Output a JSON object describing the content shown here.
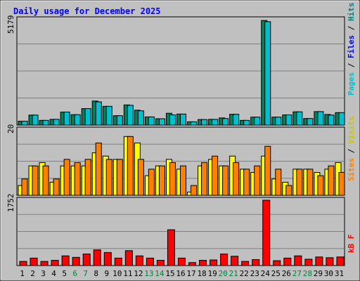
{
  "chart_data": {
    "type": "bar",
    "title": "Daily usage for December 2025",
    "categories": [
      "1",
      "2",
      "3",
      "4",
      "5",
      "6",
      "7",
      "8",
      "9",
      "10",
      "11",
      "12",
      "13",
      "14",
      "15",
      "16",
      "17",
      "18",
      "19",
      "20",
      "21",
      "22",
      "23",
      "24",
      "25",
      "26",
      "27",
      "28",
      "29",
      "30",
      "31"
    ],
    "weekend_days": [
      "6",
      "7",
      "13",
      "14",
      "20",
      "21",
      "27",
      "28"
    ],
    "panels": [
      {
        "id": "pages-files-hits",
        "max_label": "5179",
        "ymax": 5179,
        "series": [
          {
            "name": "Pages",
            "color": "#00805c",
            "values": [
              190,
              490,
              230,
              280,
              640,
              510,
              810,
              1180,
              920,
              460,
              990,
              730,
              400,
              310,
              580,
              540,
              160,
              270,
              280,
              350,
              530,
              230,
              390,
              5140,
              390,
              500,
              650,
              320,
              660,
              520,
              610
            ]
          },
          {
            "name": "Files",
            "color": "#00c0d0",
            "values": [
              190,
              490,
              230,
              280,
              640,
              510,
              810,
              1140,
              920,
              460,
              970,
              700,
              400,
              310,
              500,
              540,
              160,
              270,
              280,
              320,
              530,
              230,
              390,
              5080,
              390,
              500,
              650,
              320,
              660,
              490,
              610
            ]
          },
          {
            "name": "Hits",
            "color": "#008080"
          }
        ],
        "legend_label_colors": {
          "Pages": "#00c0d0",
          "Files": "#0000ff",
          "Hits": "#008080"
        }
      },
      {
        "id": "visits-sites",
        "max_label": "20",
        "ymax": 20,
        "series": [
          {
            "name": "Visits",
            "color": "#ffff00",
            "values": [
              3,
              9,
              10,
              4,
              9,
              9,
              9,
              13,
              12,
              11,
              18,
              16,
              6,
              9,
              11,
              8,
              1,
              9,
              11,
              9,
              12,
              8,
              7,
              12,
              5,
              4,
              8,
              8,
              7,
              8,
              10
            ]
          },
          {
            "name": "Sites",
            "color": "#ff8000",
            "values": [
              5,
              9,
              9,
              5,
              11,
              10,
              11,
              16,
              11,
              11,
              18,
              11,
              8,
              9,
              10,
              9,
              3,
              10,
              12,
              9,
              10,
              8,
              9,
              15,
              8,
              3,
              8,
              8,
              6,
              9,
              7
            ]
          }
        ],
        "legend_label_colors": {
          "Visits": "#c8c800",
          "Sites": "#ff8000"
        }
      },
      {
        "id": "kb",
        "max_label": "1752",
        "ymax": 1752,
        "series": [
          {
            "name": "kB F",
            "color": "#ff0000",
            "values": [
              110,
              200,
              110,
              140,
              260,
              220,
              310,
              420,
              350,
              200,
              400,
              260,
              200,
              140,
              960,
              200,
              80,
              140,
              150,
              310,
              250,
              110,
              160,
              1752,
              130,
              200,
              260,
              170,
              230,
              210,
              230
            ]
          }
        ],
        "legend_label_colors": {
          "kB F": "#ff0000"
        }
      }
    ],
    "colors": {
      "background": "#c0c0c0",
      "title": "#0000ff",
      "weekday_label": "#000000",
      "weekend_label": "#008040",
      "grid": "#808080"
    }
  }
}
